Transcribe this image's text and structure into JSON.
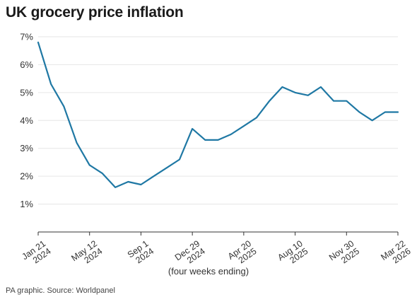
{
  "chart_data": {
    "type": "line",
    "title": "UK grocery price inflation",
    "xlabel": "(four weeks ending)",
    "ylabel": "",
    "source": "PA graphic. Source: Worldpanel",
    "ylim": [
      0,
      7
    ],
    "yticks": [
      {
        "value": 1,
        "label": "1%"
      },
      {
        "value": 2,
        "label": "2%"
      },
      {
        "value": 3,
        "label": "3%"
      },
      {
        "value": 4,
        "label": "4%"
      },
      {
        "value": 5,
        "label": "5%"
      },
      {
        "value": 6,
        "label": "6%"
      },
      {
        "value": 7,
        "label": "7%"
      }
    ],
    "xticks": [
      {
        "period": 0,
        "line1": "Jan 21",
        "line2": "2024"
      },
      {
        "period": 4,
        "line1": "May 12",
        "line2": "2024"
      },
      {
        "period": 8,
        "line1": "Sep 1",
        "line2": "2024"
      },
      {
        "period": 12,
        "line1": "Dec 29",
        "line2": "2024"
      },
      {
        "period": 16,
        "line1": "Apr 20",
        "line2": "2025"
      },
      {
        "period": 20,
        "line1": "Aug 10",
        "line2": "2025"
      },
      {
        "period": 24,
        "line1": "Nov 30",
        "line2": "2025"
      },
      {
        "period": 28,
        "line1": "Mar 22",
        "line2": "2026"
      }
    ],
    "grid": true,
    "series": [
      {
        "color": "#1f78a4",
        "x": [
          "Jan 21 2024",
          "Feb 18 2024",
          "Mar 17 2024",
          "Apr 14 2024",
          "May 12 2024",
          "Jun 9 2024",
          "Jul 7 2024",
          "Aug 4 2024",
          "Sep 1 2024",
          "Sep 29 2024",
          "Oct 27 2024",
          "Nov 24 2024",
          "Dec 29 2024",
          "Jan 26 2025",
          "Feb 23 2025",
          "Mar 23 2025",
          "Apr 20 2025",
          "May 18 2025",
          "Jun 15 2025",
          "Jul 13 2025",
          "Aug 10 2025",
          "Sep 7 2025",
          "Oct 5 2025",
          "Nov 2 2025",
          "Nov 30 2025",
          "Dec 28 2025",
          "Jan 25 2026",
          "Feb 22 2026",
          "Mar 22 2026"
        ],
        "values": [
          6.8,
          5.3,
          4.5,
          3.2,
          2.4,
          2.1,
          1.6,
          1.8,
          1.7,
          2.0,
          2.3,
          2.6,
          3.7,
          3.3,
          3.3,
          3.5,
          3.8,
          4.1,
          4.7,
          5.2,
          5.0,
          4.9,
          5.2,
          4.7,
          4.7,
          4.3,
          4.0,
          4.3,
          4.3
        ]
      }
    ]
  }
}
